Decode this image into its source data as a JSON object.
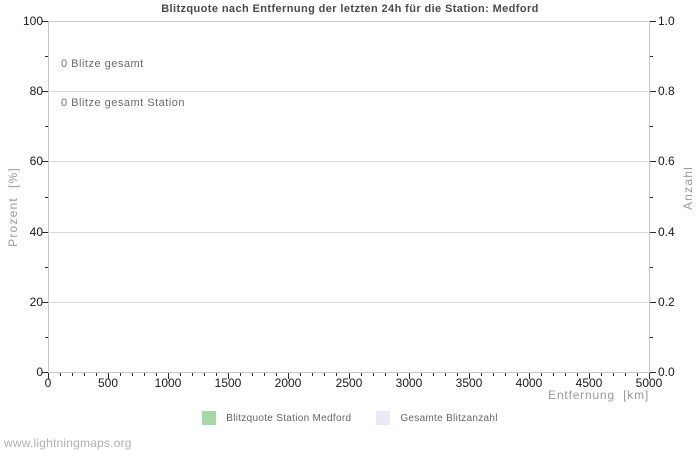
{
  "page": {
    "watermark": "www.lightningmaps.org"
  },
  "colors": {
    "title": "#4a4a4a",
    "tick_label": "#1a1a1a",
    "axis_title": "#9a9a9a",
    "annotation": "#6b6b6b",
    "legend_text": "#666666",
    "watermark": "#b0b0b0",
    "grid_line": "#dcdcdc",
    "plot_border": "#c9c9c9",
    "tick_mark": "#2b2b2b"
  },
  "chart_data": {
    "type": "bar",
    "title": "Blitzquote nach Entfernung der letzten 24h für die Station: Medford",
    "x_axis": {
      "label": "Entfernung  [km]",
      "min": 0,
      "max": 5000,
      "major_tick_step": 500,
      "minor_tick_step": 100,
      "major_tick_labels": [
        "0",
        "500",
        "1000",
        "1500",
        "2000",
        "2500",
        "3000",
        "3500",
        "4000",
        "4500",
        "5000"
      ]
    },
    "y_axis_left": {
      "label": "Prozent  [%]",
      "min": 0,
      "max": 100,
      "major_tick_step": 20,
      "minor_tick_step": 10,
      "major_tick_labels": [
        "0",
        "20",
        "40",
        "60",
        "80",
        "100"
      ]
    },
    "y_axis_right": {
      "label": "Anzahl",
      "min": 0,
      "max": 1,
      "major_tick_step": 0.2,
      "minor_tick_step": 0.1,
      "major_tick_labels": [
        "0.0",
        "0.2",
        "0.4",
        "0.6",
        "0.8",
        "1.0"
      ]
    },
    "grid": "horizontal-major-only",
    "legend_position": "bottom-center",
    "series": [
      {
        "name": "Blitzquote Station Medford",
        "color": "#a7d7a7",
        "values": []
      },
      {
        "name": "Gesamte Blitzanzahl",
        "color": "#e9e9f7",
        "values": []
      }
    ],
    "annotations": {
      "total": "0 Blitze gesamt",
      "station": "0 Blitze gesamt Station"
    }
  }
}
